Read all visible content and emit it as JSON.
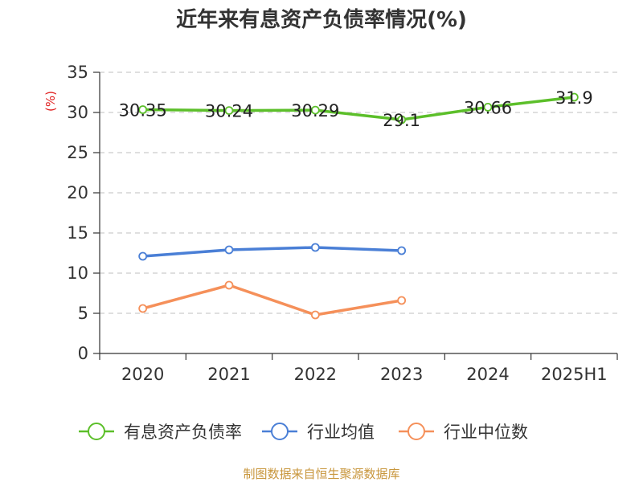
{
  "chart_data": {
    "type": "line",
    "title": "近年来有息资产负债率情况(%)",
    "unit_label": "(%)",
    "categories": [
      "2020",
      "2021",
      "2022",
      "2023",
      "2024",
      "2025H1"
    ],
    "y_ticks": [
      "0",
      "5",
      "10",
      "15",
      "20",
      "25",
      "30",
      "35"
    ],
    "ylim": [
      0,
      35
    ],
    "grid": true,
    "legend_position": "bottom",
    "series": [
      {
        "name": "有息资产负债率",
        "color": "#5cbf2a",
        "values": [
          30.35,
          30.24,
          30.29,
          29.1,
          30.66,
          31.9
        ],
        "labels": [
          "30.35",
          "30.24",
          "30.29",
          "29.1",
          "30.66",
          "31.9"
        ]
      },
      {
        "name": "行业均值",
        "color": "#4a7fd6",
        "values": [
          12.1,
          12.9,
          13.2,
          12.8,
          null,
          null
        ],
        "labels": []
      },
      {
        "name": "行业中位数",
        "color": "#f5905a",
        "values": [
          5.6,
          8.5,
          4.8,
          6.6,
          null,
          null
        ],
        "labels": []
      }
    ],
    "source": "制图数据来自恒生聚源数据库"
  }
}
